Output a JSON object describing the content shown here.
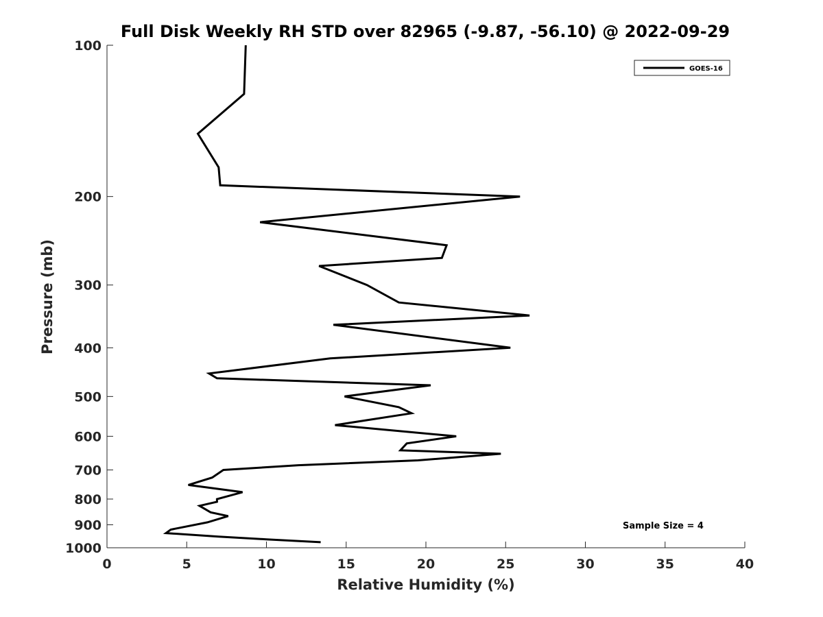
{
  "chart_data": {
    "type": "line",
    "title": "Full Disk Weekly RH STD over 82965 (-9.87, -56.10) @ 2022-09-29",
    "xlabel": "Relative Humidity (%)",
    "ylabel": "Pressure (mb)",
    "xlim": [
      0,
      40
    ],
    "ylim": [
      1000,
      100
    ],
    "y_scale": "log",
    "y_reversed": true,
    "x_ticks": [
      "0",
      "5",
      "10",
      "15",
      "20",
      "25",
      "30",
      "35",
      "40"
    ],
    "y_ticks": [
      "100",
      "200",
      "300",
      "400",
      "500",
      "600",
      "700",
      "800",
      "900",
      "1000"
    ],
    "grid": false,
    "legend_position": "top-right",
    "annotation": "Sample Size = 4",
    "series": [
      {
        "name": "GOES-16",
        "color": "#000000",
        "x": [
          8.7,
          8.6,
          5.7,
          7.0,
          7.1,
          25.9,
          9.6,
          21.3,
          21.0,
          13.3,
          16.3,
          18.3,
          26.5,
          14.2,
          25.3,
          14.0,
          6.4,
          6.9,
          20.3,
          14.9,
          18.3,
          19.1,
          14.3,
          21.9,
          18.8,
          18.4,
          24.7,
          19.5,
          12.0,
          7.3,
          6.6,
          5.1,
          8.5,
          6.9,
          6.9,
          5.8,
          6.5,
          7.6,
          6.3,
          4.0,
          3.7,
          7.0,
          10.0,
          13.4
        ],
        "y": [
          100,
          125,
          150,
          175,
          190,
          200,
          225,
          250,
          265,
          275,
          300,
          325,
          345,
          360,
          400,
          420,
          450,
          460,
          475,
          500,
          525,
          540,
          570,
          600,
          620,
          640,
          650,
          670,
          685,
          700,
          725,
          750,
          775,
          800,
          810,
          825,
          850,
          865,
          890,
          920,
          935,
          950,
          962,
          975
        ]
      }
    ]
  }
}
